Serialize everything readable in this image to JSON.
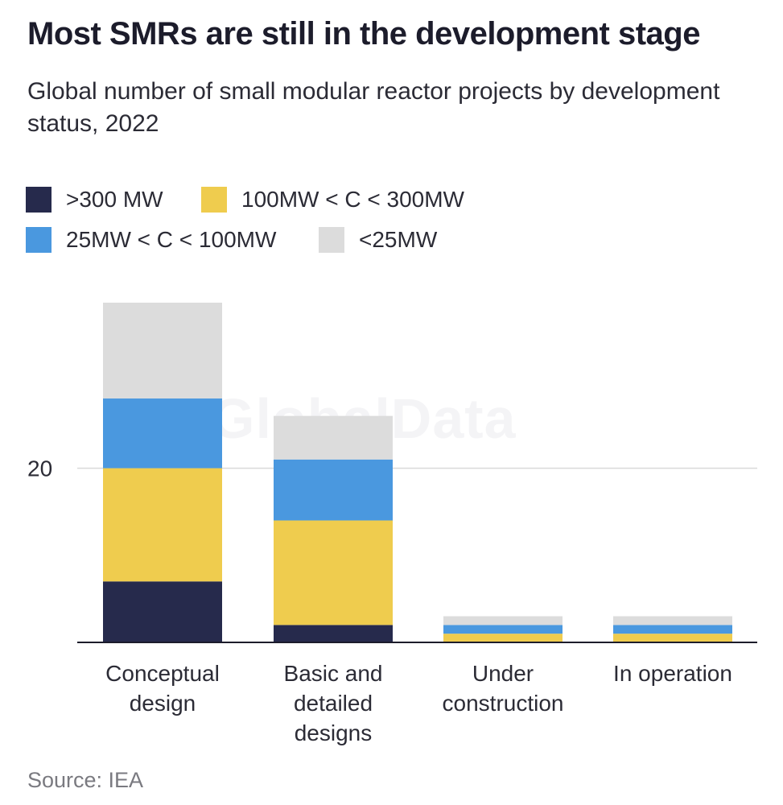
{
  "chart_data": {
    "type": "bar",
    "stacked": true,
    "title": "Most SMRs are still in the development stage",
    "subtitle": "Global number of small modular reactor projects by development status, 2022",
    "categories": [
      [
        "Conceptual",
        "design"
      ],
      [
        "Basic and",
        "detailed",
        "designs"
      ],
      [
        "Under",
        "construction"
      ],
      [
        "In operation"
      ]
    ],
    "series": [
      {
        "name": ">300 MW",
        "color": "#262a4c",
        "values": [
          7,
          2,
          0,
          0
        ]
      },
      {
        "name": "100MW < C < 300MW",
        "color": "#efcc4e",
        "values": [
          13,
          12,
          1,
          1
        ]
      },
      {
        "name": "25MW < C < 100MW",
        "color": "#4a98df",
        "values": [
          8,
          7,
          1,
          1
        ]
      },
      {
        "name": "<25MW",
        "color": "#dcdcdc",
        "values": [
          11,
          5,
          1,
          1
        ]
      }
    ],
    "yticks": [
      20
    ],
    "ylim": [
      0,
      39
    ],
    "xlabel": "",
    "ylabel": "",
    "legend": "top-left",
    "grid": true
  },
  "watermark": "GlobalData",
  "source": "Source: IEA"
}
